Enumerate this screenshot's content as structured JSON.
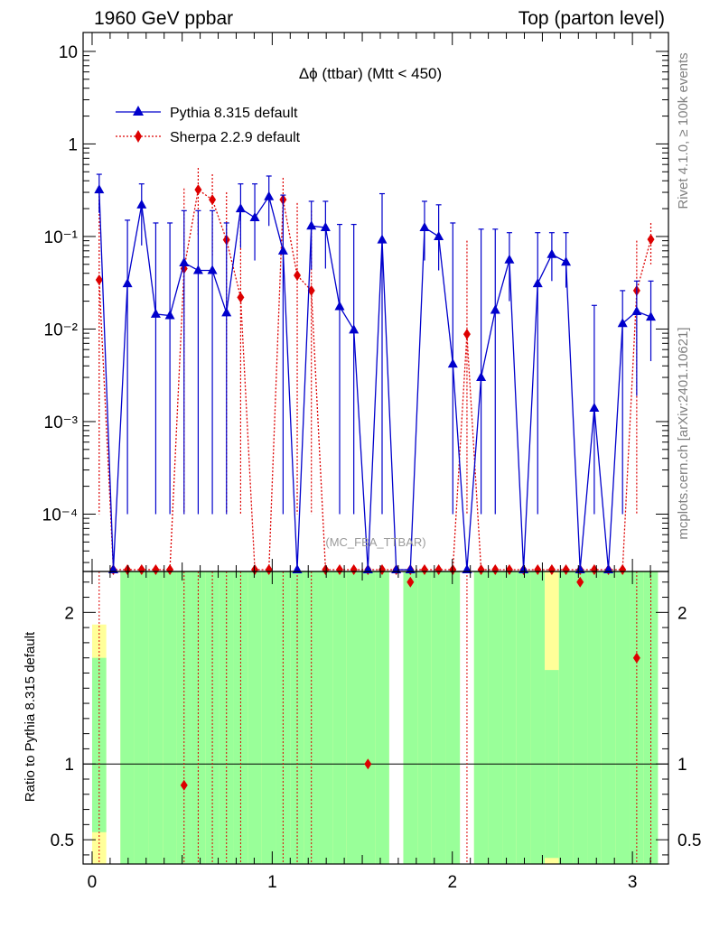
{
  "header": {
    "left": "1960 GeV ppbar",
    "right": "Top (parton level)"
  },
  "side_labels": {
    "rivet": "Rivet 4.1.0, ≥ 100k events",
    "mcplots": "mcplots.cern.ch [arXiv:2401.10621]"
  },
  "watermark": "(MC_FBA_TTBAR)",
  "colors": {
    "pythia": "#0000cc",
    "sherpa": "#dd0000",
    "band_green": "#99ff99",
    "band_yellow": "#ffff99"
  },
  "chart_data": [
    {
      "type": "line",
      "panel": "main",
      "title": "Δϕ (ttbar) (Mtt < 450)",
      "xlabel": "",
      "ylabel": "",
      "yscale": "log",
      "xlim": [
        -0.05,
        3.2
      ],
      "ylim": [
        2.4e-05,
        16
      ],
      "ytick_values": [
        0.0001,
        0.001,
        0.01,
        0.1,
        1,
        10
      ],
      "ytick_labels": [
        "10⁻⁴",
        "10⁻³",
        "10⁻²",
        "10⁻¹",
        "1",
        "10"
      ],
      "xtick_values": [
        0,
        1,
        2,
        3
      ],
      "xtick_labels": [
        "0",
        "1",
        "2",
        "3"
      ],
      "legend": {
        "position": "top-left",
        "entries": [
          "Pythia 8.315 default",
          "Sherpa 2.2.9 default"
        ]
      },
      "x": [
        0.0393,
        0.1178,
        0.1963,
        0.2749,
        0.3534,
        0.432,
        0.5105,
        0.589,
        0.6676,
        0.7461,
        0.8247,
        0.9032,
        0.9817,
        1.0603,
        1.1388,
        1.2174,
        1.2959,
        1.3744,
        1.453,
        1.5315,
        1.6101,
        1.6886,
        1.7671,
        1.8457,
        1.9242,
        2.0028,
        2.0813,
        2.1598,
        2.2384,
        2.3169,
        2.3955,
        2.474,
        2.5525,
        2.6311,
        2.7096,
        2.7882,
        2.8667,
        2.9452,
        3.0238,
        3.1023
      ],
      "series": [
        {
          "name": "Pythia 8.315 default",
          "marker": "triangle",
          "values": [
            0.32,
            null,
            0.031,
            0.22,
            0.0145,
            0.014,
            0.052,
            0.043,
            0.043,
            0.015,
            0.2,
            0.16,
            0.27,
            0.07,
            null,
            0.13,
            0.125,
            0.0175,
            0.0098,
            null,
            0.092,
            null,
            null,
            0.125,
            0.1,
            0.0042,
            null,
            0.003,
            0.016,
            0.056,
            null,
            0.031,
            0.064,
            0.053,
            null,
            0.0014,
            null,
            0.0115,
            0.0155,
            0.0135
          ],
          "err_up": [
            0.47,
            null,
            0.15,
            0.37,
            0.14,
            0.14,
            0.19,
            0.19,
            0.19,
            0.14,
            0.37,
            0.37,
            0.45,
            0.28,
            null,
            0.24,
            0.24,
            0.135,
            0.135,
            null,
            0.29,
            null,
            null,
            0.24,
            0.22,
            0.14,
            null,
            0.12,
            0.12,
            0.11,
            null,
            0.11,
            0.11,
            0.11,
            null,
            0.018,
            null,
            0.026,
            0.033,
            0.033
          ],
          "err_down": [
            0.18,
            null,
            0.0001,
            0.08,
            0.0001,
            0.0001,
            0.0001,
            0.0001,
            0.0001,
            0.0001,
            0.075,
            0.055,
            0.13,
            0.0001,
            null,
            0.044,
            0.045,
            0.0001,
            0.0001,
            null,
            0.0001,
            null,
            null,
            0.055,
            0.043,
            0.0001,
            null,
            0.0001,
            0.0001,
            0.02,
            null,
            0.0001,
            0.033,
            0.028,
            null,
            0.0001,
            null,
            0.0001,
            0.0019,
            0.0045
          ]
        },
        {
          "name": "Sherpa 2.2.9 default",
          "marker": "diamond",
          "values": [
            0.034,
            null,
            null,
            null,
            null,
            null,
            0.045,
            0.32,
            0.25,
            0.092,
            0.022,
            null,
            null,
            0.25,
            0.038,
            0.026,
            null,
            null,
            null,
            null,
            null,
            null,
            null,
            null,
            null,
            null,
            0.0088,
            null,
            null,
            null,
            null,
            null,
            null,
            null,
            null,
            null,
            null,
            null,
            0.026,
            0.093
          ],
          "err_up": [
            0.3,
            null,
            null,
            null,
            null,
            null,
            0.33,
            0.55,
            0.47,
            0.3,
            0.22,
            null,
            null,
            0.43,
            0.23,
            0.19,
            null,
            null,
            null,
            null,
            null,
            null,
            null,
            null,
            null,
            null,
            0.09,
            null,
            null,
            null,
            null,
            null,
            null,
            null,
            null,
            null,
            null,
            null,
            0.09,
            0.14
          ],
          "err_down": [
            0.0001,
            null,
            null,
            null,
            null,
            null,
            0.0001,
            0.1,
            0.06,
            0.0001,
            0.0001,
            null,
            null,
            0.07,
            0.0001,
            0.0001,
            null,
            null,
            null,
            null,
            null,
            null,
            null,
            null,
            null,
            null,
            0.0001,
            null,
            null,
            null,
            null,
            null,
            null,
            null,
            null,
            null,
            null,
            null,
            0.0001,
            0.05
          ]
        }
      ]
    },
    {
      "type": "line",
      "panel": "ratio",
      "title": "",
      "xlabel": "",
      "ylabel": "Ratio to Pythia 8.315 default",
      "xlim": [
        -0.05,
        3.2
      ],
      "ylim": [
        0.34,
        2.27
      ],
      "ytick_values": [
        0.5,
        1,
        2
      ],
      "ytick_labels": [
        "0.5",
        "1",
        "2"
      ],
      "xtick_values": [
        0,
        1,
        2,
        3
      ],
      "xtick_labels": [
        "0",
        "1",
        "2",
        "3"
      ],
      "reference_line": 1,
      "x": [
        0.0393,
        0.1178,
        0.1963,
        0.2749,
        0.3534,
        0.432,
        0.5105,
        0.589,
        0.6676,
        0.7461,
        0.8247,
        0.9032,
        0.9817,
        1.0603,
        1.1388,
        1.2174,
        1.2959,
        1.3744,
        1.453,
        1.5315,
        1.6101,
        1.6886,
        1.7671,
        1.8457,
        1.9242,
        2.0028,
        2.0813,
        2.1598,
        2.2384,
        2.3169,
        2.3955,
        2.474,
        2.5525,
        2.6311,
        2.7096,
        2.7882,
        2.8667,
        2.9452,
        3.0238,
        3.1023
      ],
      "bands": {
        "green_low": [
          0.55,
          null,
          0.34,
          0.34,
          0.34,
          0.34,
          0.34,
          0.34,
          0.34,
          0.34,
          0.34,
          0.34,
          0.34,
          0.34,
          0.34,
          0.34,
          0.34,
          0.34,
          0.34,
          0.34,
          0.34,
          0.34,
          0.34,
          0.34,
          0.34,
          0.34,
          null,
          0.34,
          0.34,
          0.34,
          0.34,
          0.34,
          0.38,
          0.34,
          0.34,
          0.34,
          0.34,
          0.34,
          0.34,
          0.34
        ],
        "green_high": [
          1.7,
          null,
          2.27,
          2.27,
          2.27,
          2.27,
          2.27,
          2.27,
          2.27,
          2.27,
          2.27,
          2.27,
          2.27,
          2.27,
          2.27,
          2.27,
          2.27,
          2.27,
          2.27,
          2.27,
          2.27,
          null,
          2.27,
          2.27,
          2.27,
          2.27,
          null,
          2.27,
          2.27,
          2.27,
          2.27,
          2.27,
          1.62,
          2.27,
          2.27,
          2.27,
          2.27,
          2.27,
          2.27,
          2.27
        ],
        "yellow_low": [
          0.34,
          null,
          0.34,
          0.34,
          0.34,
          0.34,
          0.34,
          0.34,
          0.34,
          0.34,
          0.34,
          0.34,
          0.34,
          0.34,
          0.34,
          0.34,
          0.34,
          0.34,
          0.34,
          0.34,
          0.34,
          0.34,
          0.34,
          0.34,
          0.34,
          0.34,
          null,
          0.34,
          0.34,
          0.34,
          0.34,
          0.34,
          0.34,
          0.34,
          0.34,
          0.34,
          0.34,
          0.34,
          0.34,
          0.34
        ],
        "yellow_high": [
          1.92,
          null,
          2.27,
          2.27,
          2.27,
          2.27,
          2.27,
          2.27,
          2.27,
          2.27,
          2.27,
          2.27,
          2.27,
          2.27,
          2.27,
          2.27,
          2.27,
          2.27,
          2.27,
          2.27,
          2.27,
          null,
          2.27,
          2.27,
          2.27,
          2.27,
          null,
          2.27,
          2.27,
          2.27,
          2.27,
          2.27,
          2.27,
          2.27,
          2.27,
          2.27,
          2.27,
          2.27,
          2.27,
          2.27
        ]
      },
      "series": [
        {
          "name": "Sherpa 2.2.9 default",
          "marker": "diamond",
          "points": [
            [
              0.5105,
              0.86
            ],
            [
              1.5315,
              1.0
            ],
            [
              1.7671,
              2.2
            ],
            [
              2.7096,
              2.2
            ],
            [
              3.0238,
              1.7
            ]
          ]
        }
      ]
    }
  ]
}
